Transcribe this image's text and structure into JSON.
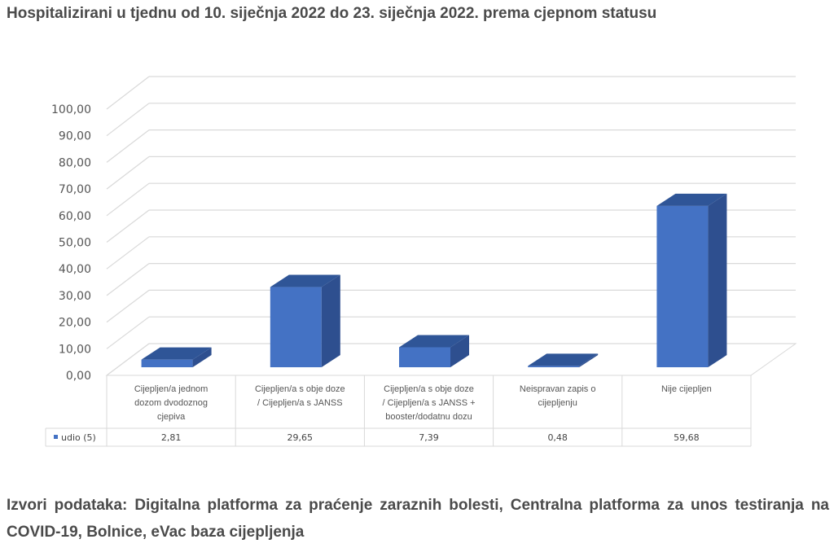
{
  "title": "Hospitalizirani u tjednu od 10. siječnja 2022 do 23. siječnja 2022. prema cjepnom statusu",
  "source": "Izvori podataka: Digitalna platforma za praćenje zaraznih bolesti, Centralna platforma za unos testiranja na COVID-19, Bolnice, eVac baza cijepljenja",
  "colors": {
    "bar_front": "#4472C4",
    "bar_top": "#2F5597",
    "bar_side": "#2E4F8F",
    "grid": "#d9d9d9"
  },
  "chart_data": {
    "type": "bar",
    "title": "",
    "categories": [
      [
        "Cijepljen/a jednom",
        "dozom dvodoznog",
        "cjepiva"
      ],
      [
        "Cijepljen/a s obje doze",
        "/ Cijepljen/a s JANSS"
      ],
      [
        "Cijepljen/a s obje doze",
        "/ Cijepljen/a s JANSS +",
        "booster/dodatnu dozu"
      ],
      [
        "Neispravan zapis o",
        "cijepljenju"
      ],
      [
        "Nije cijepljen"
      ]
    ],
    "series": [
      {
        "name": "udio (5)",
        "values": [
          2.81,
          29.65,
          7.39,
          0.48,
          59.68
        ]
      }
    ],
    "value_labels": [
      "2,81",
      "29,65",
      "7,39",
      "0,48",
      "59,68"
    ],
    "yticks": [
      "0,00",
      "10,00",
      "20,00",
      "30,00",
      "40,00",
      "50,00",
      "60,00",
      "70,00",
      "80,00",
      "90,00",
      "100,00"
    ],
    "ylim": [
      0,
      100
    ],
    "grid": true,
    "data_table": true
  }
}
